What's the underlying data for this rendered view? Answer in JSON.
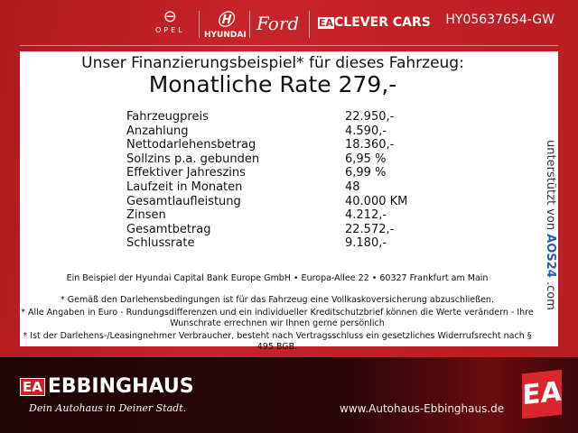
{
  "header": {
    "brands": [
      "OPEL",
      "HYUNDAI",
      "Ford",
      "CLEVER CARS"
    ],
    "vehicle_code": "HY05637654-GW"
  },
  "panel": {
    "title": "Unser Finanzierungsbeispiel* für dieses Fahrzeug:",
    "rate": "Monatliche Rate 279,-",
    "rows": [
      {
        "label": "Fahrzeugpreis",
        "value": "22.950,-"
      },
      {
        "label": "Anzahlung",
        "value": "4.590,-"
      },
      {
        "label": "Nettodarlehensbetrag",
        "value": "18.360,-"
      },
      {
        "label": "Sollzins p.a. gebunden",
        "value": "6,95 %"
      },
      {
        "label": "Effektiver Jahreszins",
        "value": "6,99 %"
      },
      {
        "label": "Laufzeit in Monaten",
        "value": "48"
      },
      {
        "label": "Gesamtlaufleistung",
        "value": "40.000 KM"
      },
      {
        "label": "Zinsen",
        "value": "4.212,-"
      },
      {
        "label": "Gesamtbetrag",
        "value": "22.572,-"
      },
      {
        "label": "Schlussrate",
        "value": "9.180,-"
      }
    ],
    "bank": "Ein Beispiel der Hyundai Capital Bank Europe GmbH • Europa-Allee 22 • 60327 Frankfurt am Main",
    "notes": [
      "* Gemäß den Darlehensbedingungen ist für das Fahrzeug eine Vollkaskoversicherung abzuschließen.",
      "* Alle Angaben in Euro - Rundungsdifferenzen und ein individueller Kreditschutzbrief können die Werte verändern - Ihre Wunschrate errechnen wir Ihnen gerne persönlich",
      "* Ist der Darlehens-/Leasingnehmer Verbraucher, besteht nach Vertragsschluss ein gesetzliches Widerrufsrecht nach § 495 BGB."
    ],
    "aos_prefix": "unterstützt von",
    "aos_brand": "AOS24",
    "aos_suffix": ".com"
  },
  "footer": {
    "logo_mark": "EA",
    "name": "EBBINGHAUS",
    "slogan": "Dein Autohaus in Deiner Stadt.",
    "url": "www.Autohaus-Ebbinghaus.de"
  }
}
